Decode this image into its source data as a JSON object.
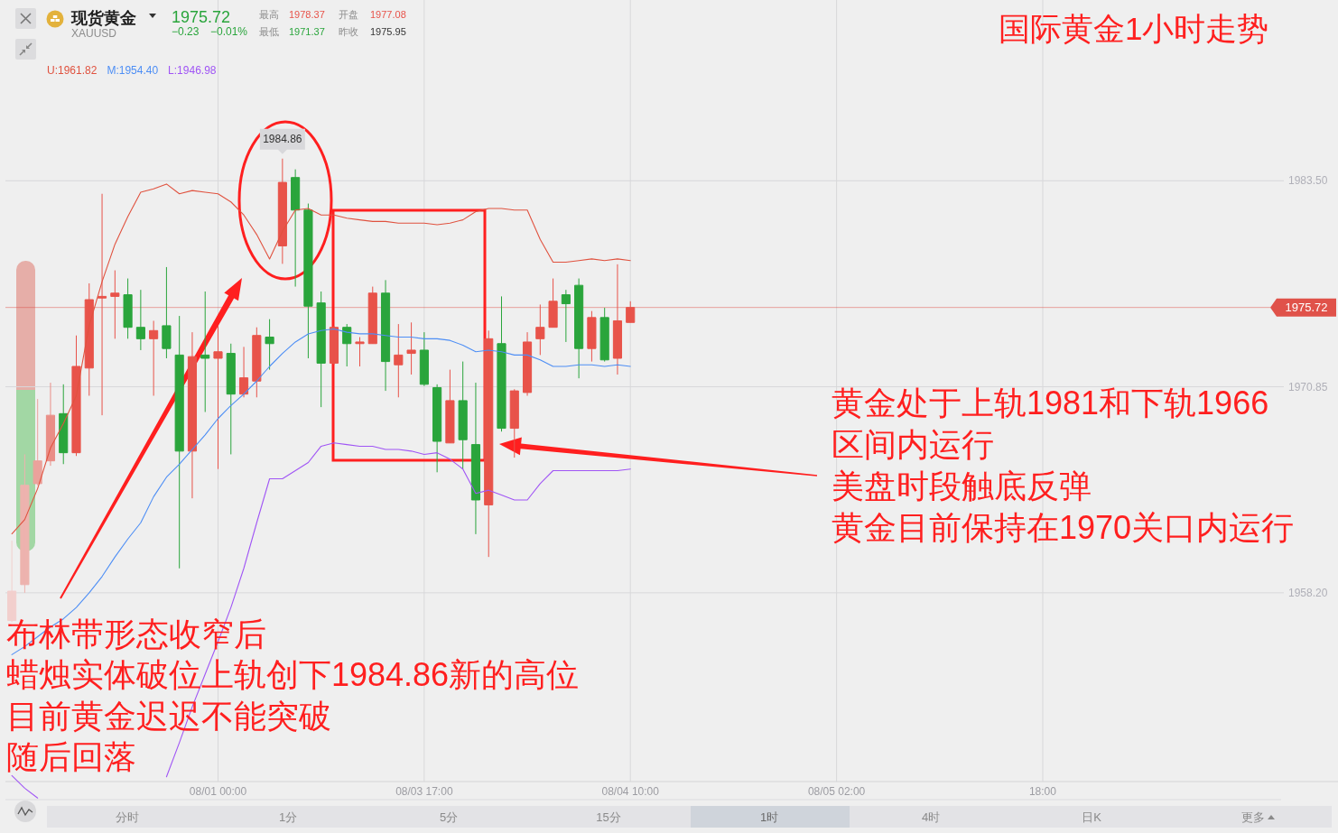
{
  "chart_data": {
    "type": "candlestick",
    "title": "国际黄金1小时走势",
    "categories": [
      null,
      null,
      null,
      null,
      null,
      null,
      null,
      null,
      null,
      null,
      null,
      null,
      null,
      null,
      null,
      null,
      "08/01 00:00",
      null,
      null,
      null,
      null,
      null,
      null,
      null,
      null,
      null,
      null,
      null,
      null,
      null,
      null,
      null,
      "08/03 17:00",
      null,
      null,
      null,
      null,
      null,
      null,
      null,
      null,
      null,
      null,
      null,
      null,
      null,
      null,
      null,
      "08/04 10:00",
      null,
      null,
      null,
      null,
      null,
      null,
      null,
      null,
      null,
      null,
      null,
      null,
      null,
      null,
      null,
      "08/05 02:00",
      null,
      null,
      null,
      null,
      null,
      null,
      null,
      null,
      null,
      null,
      null,
      null,
      null,
      null,
      null,
      "18:00",
      null,
      null,
      null,
      null,
      null,
      null,
      null,
      null,
      null,
      null,
      null,
      null,
      null,
      null,
      null,
      null,
      null,
      null
    ],
    "ohlc": [
      [
        1956.5,
        1961.4,
        1956.4,
        1958.3
      ],
      [
        1958.7,
        1966.7,
        1958.2,
        1964.8
      ],
      [
        1964.9,
        1970.1,
        1964.8,
        1966.3
      ],
      [
        1966.3,
        1971.1,
        1966.0,
        1969.1
      ],
      [
        1969.2,
        1971.0,
        1966.1,
        1966.8
      ],
      [
        1966.8,
        1974.0,
        1966.6,
        1972.1
      ],
      [
        1972.0,
        1977.2,
        1970.3,
        1976.2
      ],
      [
        1976.3,
        1982.7,
        1969.1,
        1976.4
      ],
      [
        1976.4,
        1978.0,
        1973.8,
        1976.6
      ],
      [
        1976.5,
        1977.5,
        1973.8,
        1974.5
      ],
      [
        1974.5,
        1976.8,
        1973.1,
        1973.8
      ],
      [
        1973.8,
        1974.9,
        1970.3,
        1974.3
      ],
      [
        1974.6,
        1978.2,
        1972.6,
        1973.2
      ],
      [
        1972.8,
        1975.2,
        1959.7,
        1966.9
      ],
      [
        1966.9,
        1974.2,
        1964.0,
        1972.7
      ],
      [
        1972.8,
        1976.7,
        1969.3,
        1972.6
      ],
      [
        1972.6,
        1974.6,
        1965.8,
        1973.0
      ],
      [
        1972.9,
        1973.5,
        1966.7,
        1970.4
      ],
      [
        1970.4,
        1973.3,
        1970.2,
        1971.4
      ],
      [
        1971.2,
        1974.5,
        1970.2,
        1974.0
      ],
      [
        1973.9,
        1975.0,
        1971.9,
        1973.5
      ],
      [
        1979.5,
        1984.86,
        1978.4,
        1983.4
      ],
      [
        1983.7,
        1984.2,
        1977.0,
        1981.7
      ],
      [
        1981.7,
        1982.1,
        1972.6,
        1975.8
      ],
      [
        1976.0,
        1976.7,
        1969.6,
        1972.3
      ],
      [
        1972.3,
        1974.6,
        1972.2,
        1974.5
      ],
      [
        1974.5,
        1974.7,
        1972.1,
        1973.5
      ],
      [
        1973.5,
        1973.9,
        1972.1,
        1973.6
      ],
      [
        1973.5,
        1977.0,
        1973.5,
        1976.6
      ],
      [
        1976.6,
        1977.4,
        1970.6,
        1972.4
      ],
      [
        1972.2,
        1974.7,
        1970.2,
        1972.8
      ],
      [
        1972.9,
        1974.8,
        1971.6,
        1973.1
      ],
      [
        1973.1,
        1974.2,
        1970.9,
        1971.0
      ],
      [
        1970.8,
        1971.0,
        1965.6,
        1967.5
      ],
      [
        1967.4,
        1971.9,
        1967.4,
        1970.0
      ],
      [
        1970.0,
        1972.4,
        1965.8,
        1967.6
      ],
      [
        1967.3,
        1971.1,
        1961.8,
        1963.9
      ],
      [
        1963.6,
        1974.3,
        1960.4,
        1973.8
      ],
      [
        1973.5,
        1976.4,
        1968.1,
        1968.3
      ],
      [
        1968.3,
        1970.7,
        1966.5,
        1970.6
      ],
      [
        1970.5,
        1974.2,
        1970.3,
        1973.6
      ],
      [
        1973.8,
        1975.9,
        1972.8,
        1974.5
      ],
      [
        1974.5,
        1977.5,
        1974.5,
        1976.1
      ],
      [
        1976.5,
        1976.8,
        1973.6,
        1975.95
      ],
      [
        1977.08,
        1977.5,
        1971.37,
        1973.2
      ],
      [
        1973.2,
        1975.5,
        1972.4,
        1975.1
      ],
      [
        1975.1,
        1975.7,
        1972.4,
        1972.5
      ],
      [
        1972.6,
        1978.37,
        1971.6,
        1974.9
      ],
      [
        1974.8,
        1976.1,
        1974.8,
        1975.72
      ],
      null,
      null,
      null,
      null,
      null,
      null,
      null,
      null,
      null,
      null,
      null,
      null,
      null,
      null,
      null,
      null,
      null,
      null,
      null,
      null,
      null,
      null,
      null,
      null,
      null,
      null,
      null,
      null,
      null,
      null,
      null,
      null,
      null,
      null,
      null,
      null,
      null,
      null,
      null,
      null,
      null,
      null,
      null,
      null,
      null,
      null,
      null,
      null,
      null,
      null
    ],
    "colors": [
      "#f2cfcd",
      "#edb3ae",
      "#eba29c",
      "#ea8e87",
      "#2aa53c",
      "#e8534a",
      "#e8534a",
      "#e8534a",
      "#e8534a",
      "#2aa53c",
      "#2aa53c",
      "#e8534a",
      "#2aa53c",
      "#2aa53c",
      "#e8534a",
      "#2aa53c",
      "#e8534a",
      "#2aa53c",
      "#e8534a",
      "#e8534a",
      "#2aa53c",
      "#e8534a",
      "#2aa53c",
      "#2aa53c",
      "#2aa53c",
      "#e8534a",
      "#2aa53c",
      "#e8534a",
      "#e8534a",
      "#2aa53c",
      "#e8534a",
      "#e8534a",
      "#2aa53c",
      "#2aa53c",
      "#e8534a",
      "#2aa53c",
      "#2aa53c",
      "#e8534a",
      "#2aa53c",
      "#e8534a",
      "#e8534a",
      "#e8534a",
      "#e8534a",
      "#2aa53c",
      "#2aa53c",
      "#e8534a",
      "#2aa53c",
      "#e8534a",
      "#e8534a",
      null,
      null,
      null,
      null,
      null,
      null,
      null,
      null,
      null,
      null,
      null,
      null,
      null,
      null,
      null,
      null,
      null,
      null,
      null,
      null,
      null,
      null,
      null,
      null,
      null,
      null,
      null,
      null,
      null,
      null,
      null,
      null,
      null,
      null,
      null,
      null,
      null,
      null,
      null,
      null,
      null,
      null,
      null,
      null,
      null,
      null,
      null,
      null,
      null,
      null
    ],
    "series": [
      {
        "name": "U:1961.82",
        "type": "line",
        "color": "#e0523f",
        "values": [
          1961.82,
          1962.7,
          1964.6,
          1967.1,
          1968.6,
          1970.3,
          1974.6,
          1977.3,
          1979.6,
          1981.3,
          1982.8,
          1983.0,
          1983.3,
          1982.7,
          1982.9,
          1982.8,
          1982.7,
          1982.2,
          1981.4,
          1980.2,
          1978.7,
          1980.4,
          1981.7,
          1981.8,
          1981.4,
          1981.4,
          1981.2,
          1981.1,
          1981.0,
          1981.0,
          1980.9,
          1980.9,
          1980.9,
          1980.8,
          1980.9,
          1981.1,
          1981.6,
          1981.8,
          1981.8,
          1981.7,
          1981.7,
          1979.9,
          1978.5,
          1978.5,
          1978.6,
          1978.7,
          1978.6,
          1978.7,
          1978.6,
          null,
          null,
          null,
          null,
          null,
          null,
          null,
          null,
          null,
          null,
          null,
          null,
          null,
          null,
          null,
          null,
          null,
          null,
          null,
          null,
          null,
          null,
          null,
          null,
          null,
          null,
          null,
          null,
          null,
          null,
          null,
          null,
          null,
          null,
          null,
          null,
          null,
          null,
          null,
          null,
          null,
          null,
          null,
          null,
          null,
          null,
          null,
          null,
          null,
          null
        ]
      },
      {
        "name": "M:1954.40",
        "type": "line",
        "color": "#4d8ef5",
        "values": [
          1954.4,
          1954.9,
          1955.5,
          1956.1,
          1956.6,
          1957.3,
          1958.2,
          1959.2,
          1960.4,
          1961.5,
          1962.5,
          1964.1,
          1965.3,
          1966.1,
          1967.0,
          1967.9,
          1968.9,
          1969.7,
          1970.4,
          1971.2,
          1972.1,
          1972.9,
          1973.6,
          1974.1,
          1974.3,
          1974.4,
          1974.2,
          1974.1,
          1974.1,
          1974.0,
          1973.9,
          1973.9,
          1973.8,
          1973.8,
          1973.7,
          1973.4,
          1973.0,
          1973.1,
          1973.0,
          1972.8,
          1972.8,
          1972.5,
          1972.1,
          1972.1,
          1972.2,
          1972.2,
          1972.1,
          1972.2,
          1972.1,
          null,
          null,
          null,
          null,
          null,
          null,
          null,
          null,
          null,
          null,
          null,
          null,
          null,
          null,
          null,
          null,
          null,
          null,
          null,
          null,
          null,
          null,
          null,
          null,
          null,
          null,
          null,
          null,
          null,
          null,
          null,
          null,
          null,
          null,
          null,
          null,
          null,
          null,
          null,
          null,
          null,
          null,
          null,
          null,
          null,
          null,
          null,
          null,
          null,
          null
        ]
      },
      {
        "name": "L:1946.98",
        "type": "line",
        "color": "#a055f5",
        "values": [
          1946.98,
          1946.2,
          1945.6,
          null,
          null,
          null,
          null,
          null,
          null,
          null,
          null,
          null,
          1946.9,
          1949.0,
          1951.2,
          1953.2,
          1955.2,
          1957.3,
          1959.7,
          1962.5,
          1965.2,
          1965.2,
          1965.7,
          1966.2,
          1967.2,
          1967.4,
          1967.3,
          1967.2,
          1967.2,
          1967.0,
          1967.0,
          1966.9,
          1966.7,
          1966.8,
          1966.4,
          1965.8,
          1964.3,
          1964.5,
          1964.2,
          1963.9,
          1963.9,
          1964.9,
          1965.7,
          1965.7,
          1965.7,
          1965.7,
          1965.7,
          1965.7,
          1965.8,
          null,
          null,
          null,
          null,
          null,
          null,
          null,
          null,
          null,
          null,
          null,
          null,
          null,
          null,
          null,
          null,
          null,
          null,
          null,
          null,
          null,
          null,
          null,
          null,
          null,
          null,
          null,
          null,
          null,
          null,
          null,
          null,
          null,
          null,
          null,
          null,
          null,
          null,
          null,
          null,
          null,
          null,
          null,
          null,
          null,
          null,
          null,
          null,
          null,
          null
        ]
      }
    ],
    "ylim": [
      1945.5,
      1994.6
    ],
    "yticks": [
      {
        "value": 1958.2,
        "label": "1958.20"
      },
      {
        "value": 1970.85,
        "label": "1970.85"
      },
      {
        "value": 1983.5,
        "label": "1983.50"
      }
    ],
    "grid": true,
    "legend": "top left",
    "ref_lines": [
      {
        "axis": "y",
        "value": 1975.72,
        "label": "1975.72",
        "color": "#e0524a"
      }
    ],
    "annotations": [
      "现货黄金",
      "XAUUSD",
      "1975.72",
      "−0.23",
      "−0.01%",
      "最高",
      "1978.37",
      "开盘",
      "1977.08",
      "最低",
      "1971.37",
      "昨收",
      "1975.95",
      {
        "text": "1984.86",
        "y": 1984.86
      },
      "黄金处于上轨1981和下轨1966",
      "区间内运行",
      "美盘时段触底反弹",
      "黄金目前保持在1970关口内运行",
      "布林带形态收窄后",
      "蜡烛实体破位上轨创下1984.86新的高位",
      "目前黄金迟迟不能突破",
      "随后回落",
      "分时",
      "1分",
      "5分",
      "15分",
      "1时",
      "4时",
      "日K",
      "更多"
    ]
  }
}
